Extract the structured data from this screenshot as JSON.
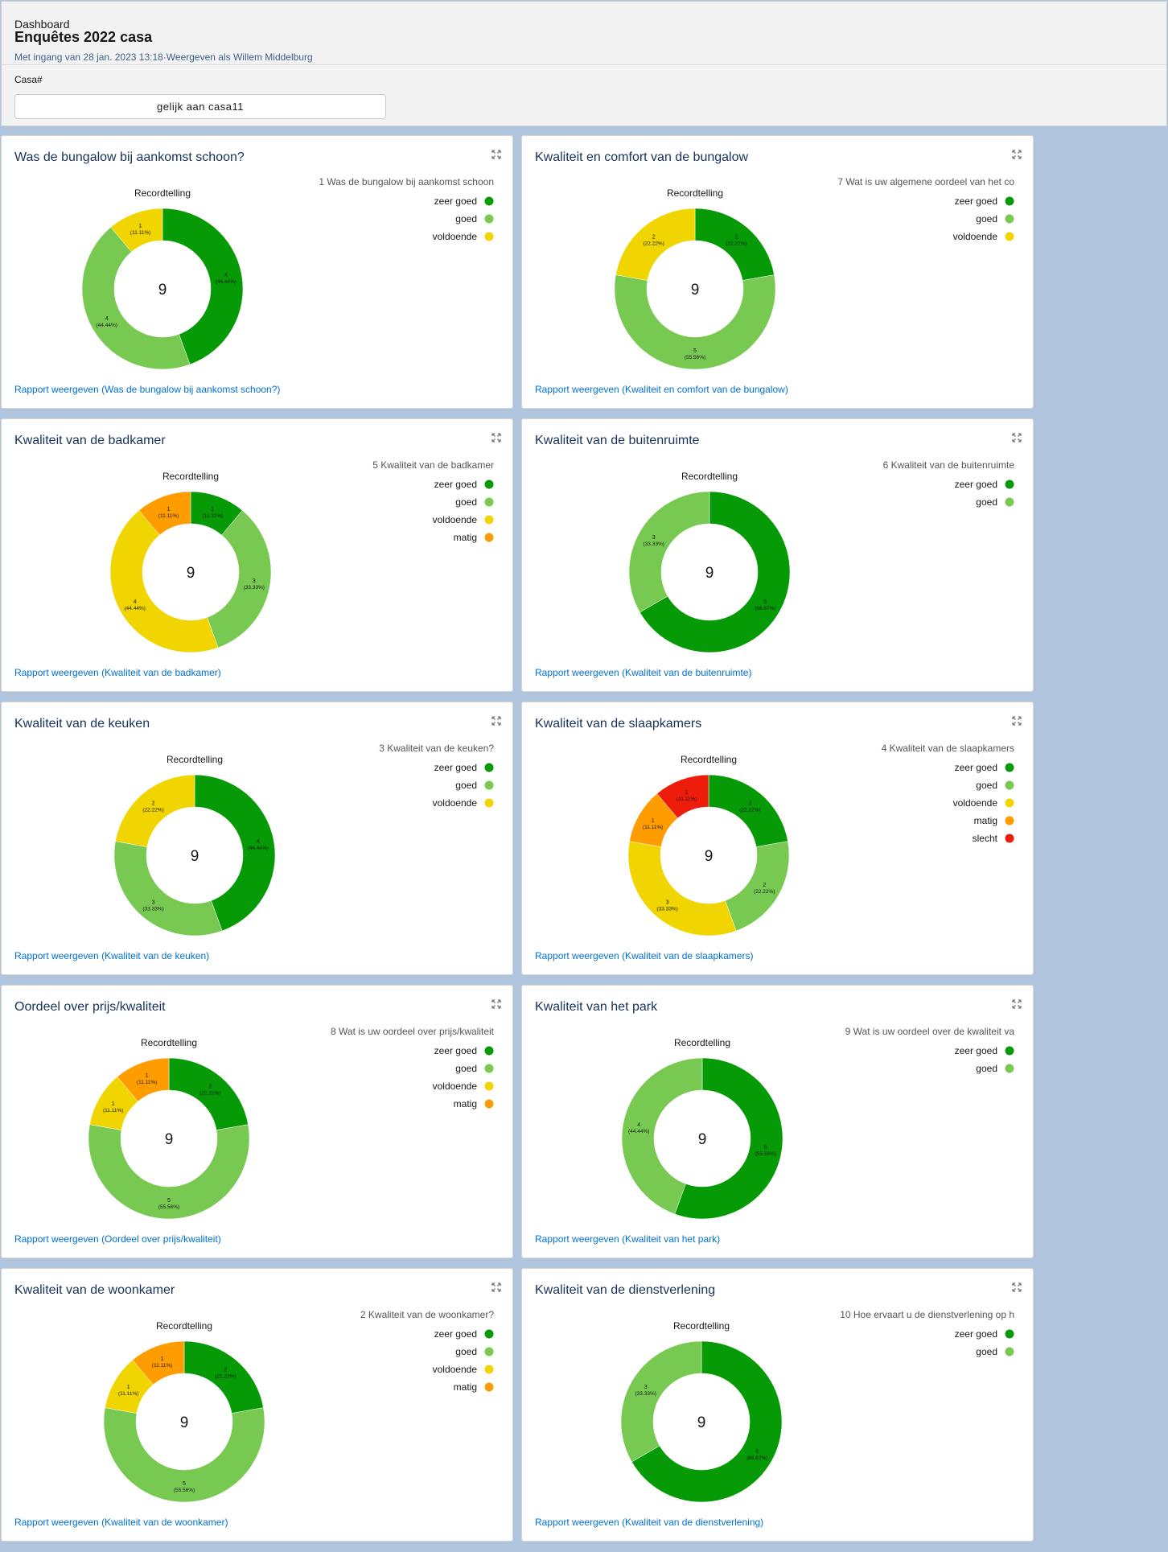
{
  "header": {
    "label": "Dashboard",
    "title": "Enquêtes 2022 casa",
    "subtitle": "Met ingang van 28 jan. 2023 13:18·Weergeven als Willem Middelburg",
    "filter_label": "Casa#",
    "filter_value": "gelijk aan casa11"
  },
  "colors": {
    "zeer goed": "#069a06",
    "goed": "#77c952",
    "voldoende": "#f0d500",
    "matig": "#ff9d00",
    "slecht": "#ee1c0a"
  },
  "chart_data": [
    {
      "type": "donut",
      "title": "Was de bungalow bij aankomst schoon?",
      "chart_label": "Recordtelling",
      "legend_title": "1 Was de bungalow bij aankomst schoon",
      "total": "9",
      "slices": [
        {
          "name": "zeer goed",
          "value": 4,
          "pct": "(44.44%)"
        },
        {
          "name": "goed",
          "value": 4,
          "pct": "(44.44%)"
        },
        {
          "name": "voldoende",
          "value": 1,
          "pct": "(11.11%)"
        }
      ],
      "legend_placement": "top-right",
      "link": "Rapport weergeven (Was de bungalow bij aankomst schoon?)"
    },
    {
      "type": "donut",
      "title": "Kwaliteit en comfort van de bungalow",
      "chart_label": "Recordtelling",
      "legend_title": "7 Wat is uw  algemene oordeel van het co",
      "total": "9",
      "slices": [
        {
          "name": "zeer goed",
          "value": 2,
          "pct": "(22.22%)"
        },
        {
          "name": "goed",
          "value": 5,
          "pct": "(55.56%)"
        },
        {
          "name": "voldoende",
          "value": 2,
          "pct": "(22.22%)"
        }
      ],
      "legend_placement": "top-right",
      "link": "Rapport weergeven (Kwaliteit en comfort van de bungalow)"
    },
    {
      "type": "donut",
      "title": "Kwaliteit van de badkamer",
      "chart_label": "Recordtelling",
      "legend_title": "5 Kwaliteit van de badkamer",
      "total": "9",
      "slices": [
        {
          "name": "zeer goed",
          "value": 1,
          "pct": "(11.11%)"
        },
        {
          "name": "goed",
          "value": 3,
          "pct": "(33.33%)"
        },
        {
          "name": "voldoende",
          "value": 4,
          "pct": "(44.44%)"
        },
        {
          "name": "matig",
          "value": 1,
          "pct": "(11.11%)"
        }
      ],
      "legend_placement": "top-right",
      "link": "Rapport weergeven (Kwaliteit van de badkamer)"
    },
    {
      "type": "donut",
      "title": "Kwaliteit van de buitenruimte",
      "chart_label": "Recordtelling",
      "legend_title": "6 Kwaliteit van de buitenruimte",
      "total": "9",
      "slices": [
        {
          "name": "zeer goed",
          "value": 6,
          "pct": "(66.67%)"
        },
        {
          "name": "goed",
          "value": 3,
          "pct": "(33.33%)"
        }
      ],
      "legend_placement": "top-right",
      "link": "Rapport weergeven (Kwaliteit van de buitenruimte)"
    },
    {
      "type": "donut",
      "title": "Kwaliteit van de keuken",
      "chart_label": "Recordtelling",
      "legend_title": "3 Kwaliteit van de keuken?",
      "total": "9",
      "slices": [
        {
          "name": "zeer goed",
          "value": 4,
          "pct": "(44.44%)"
        },
        {
          "name": "goed",
          "value": 3,
          "pct": "(33.33%)"
        },
        {
          "name": "voldoende",
          "value": 2,
          "pct": "(22.22%)"
        }
      ],
      "legend_placement": "top-right",
      "link": "Rapport weergeven (Kwaliteit van de keuken)"
    },
    {
      "type": "donut",
      "title": "Kwaliteit van de slaapkamers",
      "chart_label": "Recordtelling",
      "legend_title": "4 Kwaliteit van de slaapkamers",
      "total": "9",
      "slices": [
        {
          "name": "zeer goed",
          "value": 2,
          "pct": "(22.22%)"
        },
        {
          "name": "goed",
          "value": 2,
          "pct": "(22.22%)"
        },
        {
          "name": "voldoende",
          "value": 3,
          "pct": "(33.33%)"
        },
        {
          "name": "matig",
          "value": 1,
          "pct": "(11.11%)"
        },
        {
          "name": "slecht",
          "value": 1,
          "pct": "(11.11%)"
        }
      ],
      "legend_placement": "top-right",
      "link": "Rapport weergeven (Kwaliteit van de slaapkamers)"
    },
    {
      "type": "donut",
      "title": "Oordeel over prijs/kwaliteit",
      "chart_label": "Recordtelling",
      "legend_title": "8 Wat is uw oordeel over prijs/kwaliteit",
      "total": "9",
      "slices": [
        {
          "name": "zeer goed",
          "value": 2,
          "pct": "(22.22%)"
        },
        {
          "name": "goed",
          "value": 5,
          "pct": "(55.56%)"
        },
        {
          "name": "voldoende",
          "value": 1,
          "pct": "(11.11%)"
        },
        {
          "name": "matig",
          "value": 1,
          "pct": "(11.11%)"
        }
      ],
      "legend_placement": "top-right",
      "link": "Rapport weergeven (Oordeel over prijs/kwaliteit)"
    },
    {
      "type": "donut",
      "title": "Kwaliteit van het park",
      "chart_label": "Recordtelling",
      "legend_title": "9 Wat is uw oordeel over de kwaliteit va",
      "total": "9",
      "slices": [
        {
          "name": "zeer goed",
          "value": 5,
          "pct": "(55.56%)"
        },
        {
          "name": "goed",
          "value": 4,
          "pct": "(44.44%)"
        }
      ],
      "legend_placement": "top-right",
      "link": "Rapport weergeven (Kwaliteit van het park)"
    },
    {
      "type": "donut",
      "title": "Kwaliteit van de woonkamer",
      "chart_label": "Recordtelling",
      "legend_title": "2 Kwaliteit van de woonkamer?",
      "total": "9",
      "slices": [
        {
          "name": "zeer goed",
          "value": 2,
          "pct": "(22.22%)"
        },
        {
          "name": "goed",
          "value": 5,
          "pct": "(55.56%)"
        },
        {
          "name": "voldoende",
          "value": 1,
          "pct": "(11.11%)"
        },
        {
          "name": "matig",
          "value": 1,
          "pct": "(11.11%)"
        }
      ],
      "legend_placement": "top-right",
      "link": "Rapport weergeven (Kwaliteit van de woonkamer)"
    },
    {
      "type": "donut",
      "title": "Kwaliteit van de dienstverlening",
      "chart_label": "Recordtelling",
      "legend_title": "10 Hoe ervaart u de dienstverlening op h",
      "total": "9",
      "slices": [
        {
          "name": "zeer goed",
          "value": 6,
          "pct": "(66.67%)"
        },
        {
          "name": "goed",
          "value": 3,
          "pct": "(33.33%)"
        }
      ],
      "legend_placement": "top-right",
      "link": "Rapport weergeven (Kwaliteit van de dienstverlening)"
    }
  ]
}
